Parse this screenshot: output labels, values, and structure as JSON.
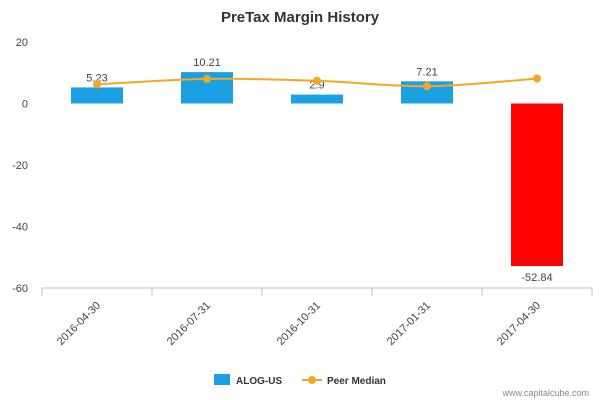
{
  "chart_data": {
    "type": "bar",
    "title": "PreTax Margin History",
    "categories": [
      "2016-04-30",
      "2016-07-31",
      "2016-10-31",
      "2017-01-31",
      "2017-04-30"
    ],
    "series": [
      {
        "name": "ALOG-US",
        "type": "bar",
        "values": [
          5.23,
          10.21,
          2.9,
          7.21,
          -52.84
        ],
        "labels": [
          "5.23",
          "10.21",
          "2.9",
          "7.21",
          "-52.84"
        ],
        "colors": [
          "#1ba1e2",
          "#1ba1e2",
          "#1ba1e2",
          "#1ba1e2",
          "#ff0000"
        ]
      },
      {
        "name": "Peer Median",
        "type": "line",
        "values": [
          6.2,
          8.0,
          7.4,
          5.6,
          8.1
        ],
        "color": "#f5a623"
      }
    ],
    "ylim": [
      -60,
      20
    ],
    "yticks": [
      20,
      0,
      -20,
      -40,
      -60
    ],
    "ytick_labels": [
      "20",
      "0",
      "-20",
      "-40",
      "-60"
    ],
    "grid": false,
    "legend_position": "bottom"
  },
  "credit": "www.capitalcube.com"
}
